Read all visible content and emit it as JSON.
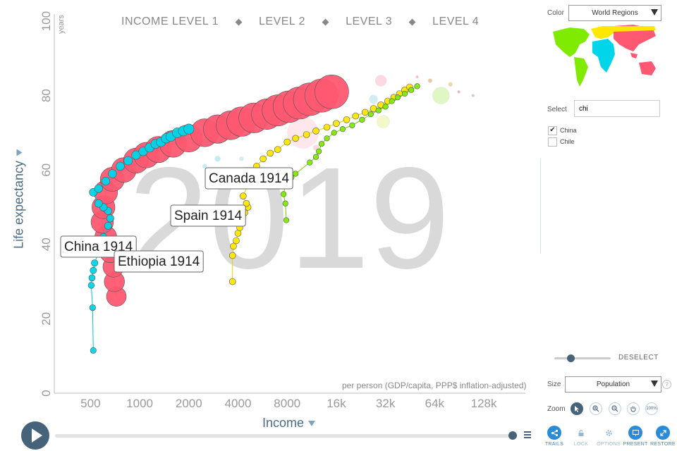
{
  "chart_data": {
    "type": "scatter",
    "year": "2019",
    "ylabel": "Life expectancy",
    "ylabel_unit": "years",
    "xlabel": "Income",
    "xlabel_unit": "per person (GDP/capita, PPP$ inflation-adjusted)",
    "x_scale": "log",
    "xlim": [
      300,
      230000
    ],
    "ylim": [
      0,
      100
    ],
    "x_ticks": [
      {
        "v": 500,
        "label": "500"
      },
      {
        "v": 1000,
        "label": "1000"
      },
      {
        "v": 2000,
        "label": "2000"
      },
      {
        "v": 4000,
        "label": "4000"
      },
      {
        "v": 8000,
        "label": "8000"
      },
      {
        "v": 16000,
        "label": "16k"
      },
      {
        "v": 32000,
        "label": "32k"
      },
      {
        "v": 64000,
        "label": "64k"
      },
      {
        "v": 128000,
        "label": "128k"
      }
    ],
    "y_ticks": [
      0,
      20,
      40,
      60,
      80,
      100
    ],
    "income_levels": [
      "INCOME LEVEL 1",
      "LEVEL 2",
      "LEVEL 3",
      "LEVEL 4"
    ],
    "series": [
      {
        "name": "China",
        "color": "#00d5e9",
        "trail": [
          [
            520,
            11.5
          ],
          [
            515,
            23
          ],
          [
            505,
            29
          ],
          [
            510,
            31
          ],
          [
            520,
            33
          ],
          [
            530,
            35
          ],
          [
            560,
            38
          ],
          [
            600,
            42
          ],
          [
            640,
            45
          ],
          [
            660,
            47
          ],
          [
            640,
            49
          ],
          [
            600,
            50
          ],
          [
            560,
            51
          ],
          [
            520,
            54
          ],
          [
            560,
            55
          ],
          [
            620,
            57
          ],
          [
            680,
            59
          ],
          [
            760,
            61
          ],
          [
            850,
            62.5
          ],
          [
            950,
            64
          ],
          [
            1050,
            65
          ],
          [
            1150,
            66
          ],
          [
            1250,
            67
          ],
          [
            1350,
            67.5
          ],
          [
            1450,
            68.5
          ],
          [
            1550,
            69
          ],
          [
            1700,
            70
          ],
          [
            1850,
            70.5
          ],
          [
            2000,
            71
          ]
        ]
      },
      {
        "name": "Canada",
        "color": "#ffe700",
        "trail": [
          [
            3700,
            30
          ],
          [
            3700,
            37
          ],
          [
            3750,
            39.5
          ],
          [
            3900,
            41
          ],
          [
            4000,
            43
          ],
          [
            4100,
            44.5
          ],
          [
            4000,
            46
          ],
          [
            4200,
            47
          ],
          [
            4400,
            48.5
          ],
          [
            4600,
            50
          ],
          [
            4500,
            51
          ],
          [
            4300,
            53
          ],
          [
            4800,
            58
          ],
          [
            5200,
            61
          ],
          [
            5700,
            63
          ],
          [
            6300,
            64.5
          ],
          [
            7000,
            65.5
          ],
          [
            8000,
            67.5
          ],
          [
            9000,
            68.5
          ],
          [
            10500,
            69.5
          ],
          [
            12000,
            70.5
          ],
          [
            14000,
            71.5
          ],
          [
            16000,
            72.5
          ],
          [
            18500,
            73.5
          ],
          [
            21000,
            74.5
          ],
          [
            24000,
            75.5
          ],
          [
            27000,
            76.5
          ],
          [
            30000,
            77.5
          ],
          [
            33000,
            78.5
          ],
          [
            36000,
            79.5
          ],
          [
            39000,
            80.5
          ],
          [
            42000,
            81.5
          ],
          [
            45000,
            82.3
          ]
        ]
      },
      {
        "name": "Spain",
        "color": "#7feb00",
        "trail": [
          [
            7900,
            46.5
          ],
          [
            7800,
            51
          ],
          [
            7600,
            53.5
          ],
          [
            7800,
            56
          ],
          [
            8500,
            58
          ],
          [
            9000,
            59
          ],
          [
            11000,
            62
          ],
          [
            12000,
            63.5
          ],
          [
            12500,
            65
          ],
          [
            13000,
            67
          ],
          [
            14000,
            68.5
          ],
          [
            15500,
            70
          ],
          [
            17500,
            71
          ],
          [
            20000,
            72
          ],
          [
            23000,
            73.5
          ],
          [
            26000,
            75
          ],
          [
            29000,
            76
          ],
          [
            32000,
            77
          ],
          [
            35000,
            78.5
          ],
          [
            38000,
            79.5
          ],
          [
            42000,
            80.5
          ],
          [
            46000,
            81.5
          ],
          [
            50000,
            82.5
          ]
        ]
      },
      {
        "name": "Ethiopia",
        "color": "#ff5872",
        "trail": [
          [
            720,
            26
          ],
          [
            700,
            30
          ],
          [
            690,
            34
          ],
          [
            660,
            38
          ],
          [
            620,
            42
          ],
          [
            590,
            46
          ],
          [
            600,
            50
          ],
          [
            620,
            54
          ],
          [
            680,
            57.5
          ],
          [
            800,
            60
          ],
          [
            950,
            62.5
          ],
          [
            1100,
            64
          ],
          [
            1300,
            65.5
          ],
          [
            1600,
            67
          ],
          [
            2000,
            68.5
          ],
          [
            2500,
            70
          ],
          [
            3000,
            71
          ],
          [
            3600,
            72
          ],
          [
            4200,
            73
          ],
          [
            5000,
            74
          ],
          [
            6000,
            75
          ],
          [
            7000,
            76
          ],
          [
            8200,
            77
          ],
          [
            9500,
            78
          ],
          [
            11000,
            79
          ],
          [
            13000,
            80
          ],
          [
            15000,
            81
          ]
        ]
      }
    ],
    "annotations": [
      {
        "label": "China 1914",
        "country": "China"
      },
      {
        "label": "Ethiopia 1914",
        "country": "Ethiopia"
      },
      {
        "label": "Spain 1914",
        "country": "Spain"
      },
      {
        "label": "Canada 1914",
        "country": "Canada"
      }
    ]
  },
  "ui": {
    "color_label": "Color",
    "color_value": "World Regions",
    "select_label": "Select",
    "search_value": "chi",
    "checkbox_items": [
      {
        "label": "China",
        "checked": true
      },
      {
        "label": "Chile",
        "checked": false
      }
    ],
    "deselect_label": "DESELECT",
    "size_label": "Size",
    "size_value": "Population",
    "help_glyph": "?",
    "zoom_label": "Zoom",
    "zoom_100_label": "100%",
    "bottom_buttons": [
      {
        "label": "TRAILS",
        "color": "#2a8bd6"
      },
      {
        "label": "LOCK",
        "color": "#9ab7cc"
      },
      {
        "label": "OPTIONS",
        "color": "#9ab7cc"
      },
      {
        "label": "PRESENT",
        "color": "#2a8bd6"
      },
      {
        "label": "RESTORE",
        "color": "#2a8bd6"
      }
    ],
    "region_colors": {
      "asia": "#ff5872",
      "africa": "#00d5e9",
      "europe": "#ffe700",
      "americas": "#7feb00"
    }
  }
}
